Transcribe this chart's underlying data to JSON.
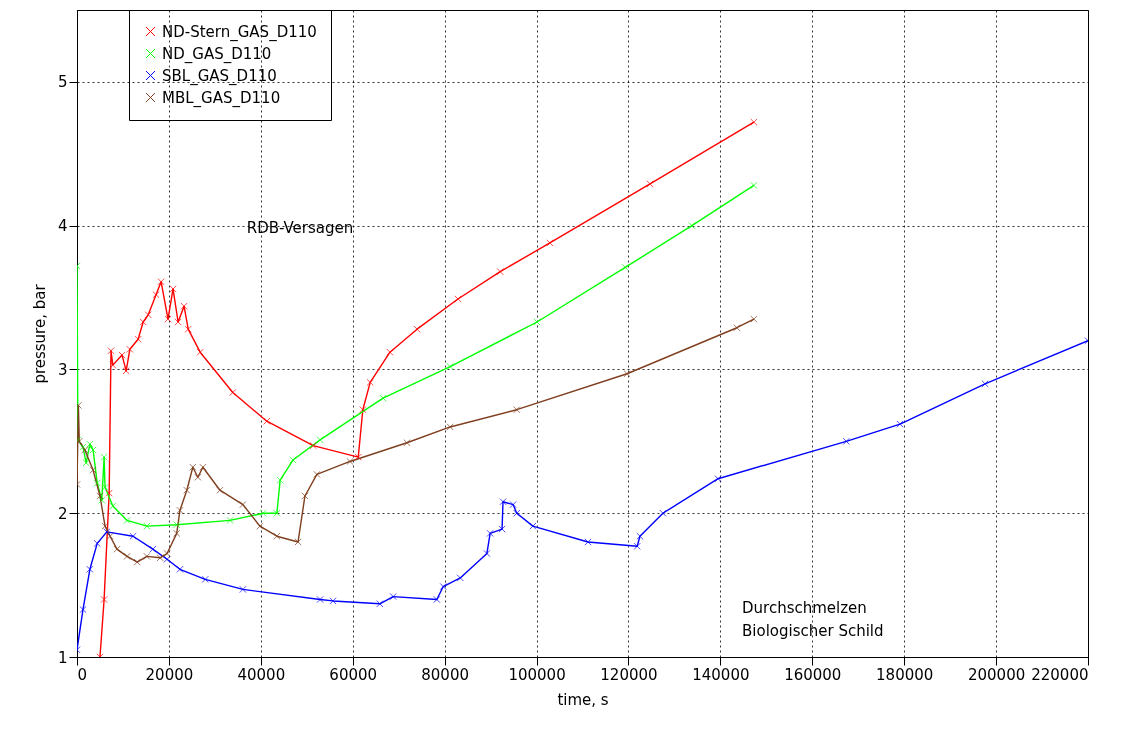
{
  "chart_data": {
    "type": "line",
    "xlabel": "time,  s",
    "ylabel": "pressure,  bar",
    "xlim": [
      0,
      220000
    ],
    "xticks": [
      0,
      20000,
      40000,
      60000,
      80000,
      100000,
      120000,
      140000,
      160000,
      180000,
      200000,
      220000
    ],
    "ylim": [
      1,
      5.5
    ],
    "yticks": [
      1,
      2,
      3,
      4,
      5
    ],
    "grid": true,
    "legend": "top left",
    "marker": "cross",
    "line_style": "solid",
    "annotations": [
      "RDB-Versagen",
      "Durchschmelzen\nBiologischer Schild"
    ],
    "series": [
      {
        "name": "ND-Stern_GAS_D110",
        "color": "#ff0000",
        "x": [
          5000,
          5900,
          7000,
          7400,
          7800,
          9800,
          10700,
          11500,
          13300,
          14400,
          15500,
          17200,
          18300,
          19800,
          20900,
          22000,
          23300,
          24200,
          26800,
          33900,
          41300,
          51400,
          61200,
          62200,
          63800,
          68100,
          74000,
          82900,
          92100,
          102900,
          124700,
          147300
        ],
        "values": [
          1.0,
          1.4,
          2.14,
          3.13,
          3.03,
          3.1,
          2.99,
          3.14,
          3.21,
          3.33,
          3.38,
          3.52,
          3.61,
          3.35,
          3.56,
          3.33,
          3.44,
          3.28,
          3.12,
          2.84,
          2.64,
          2.47,
          2.39,
          2.72,
          2.91,
          3.12,
          3.28,
          3.49,
          3.68,
          3.88,
          4.29,
          4.72
        ]
      },
      {
        "name": "ND_GAS_D110",
        "color": "#00ff00",
        "x": [
          0,
          200,
          1300,
          2000,
          2800,
          3500,
          4400,
          5400,
          5900,
          6100,
          7800,
          10900,
          15200,
          21700,
          33300,
          40500,
          43500,
          44200,
          47000,
          52900,
          66600,
          81200,
          100100,
          119300,
          133800,
          147300
        ],
        "values": [
          3.72,
          2.51,
          2.46,
          2.35,
          2.48,
          2.44,
          2.21,
          2.09,
          2.39,
          2.18,
          2.05,
          1.95,
          1.91,
          1.92,
          1.95,
          2.0,
          2.0,
          2.23,
          2.37,
          2.51,
          2.8,
          3.02,
          3.33,
          3.71,
          4.0,
          4.28
        ]
      },
      {
        "name": "SBL_GAS_D110",
        "color": "#0000ff",
        "x": [
          0,
          1300,
          2800,
          4400,
          6500,
          12200,
          16500,
          19600,
          22400,
          27900,
          36100,
          52900,
          55700,
          65900,
          68800,
          78300,
          79700,
          83400,
          89200,
          89900,
          92500,
          92700,
          94900,
          95700,
          99200,
          111200,
          121900,
          122500,
          127500,
          139500,
          167400,
          179100,
          197600,
          220000
        ],
        "values": [
          1.05,
          1.33,
          1.61,
          1.79,
          1.87,
          1.84,
          1.75,
          1.68,
          1.61,
          1.54,
          1.47,
          1.4,
          1.39,
          1.37,
          1.42,
          1.4,
          1.49,
          1.55,
          1.72,
          1.86,
          1.89,
          2.08,
          2.06,
          2.0,
          1.91,
          1.8,
          1.77,
          1.84,
          2.0,
          2.24,
          2.5,
          2.62,
          2.9,
          3.2
        ]
      },
      {
        "name": "MBL_GAS_D110",
        "color": "#7f3f1f",
        "x": [
          0,
          300,
          500,
          1700,
          3500,
          5000,
          6100,
          7200,
          8700,
          10900,
          13100,
          15200,
          18100,
          19600,
          21700,
          22400,
          23900,
          25200,
          26300,
          27400,
          31100,
          36100,
          39800,
          43500,
          48100,
          49600,
          52200,
          59400,
          71800,
          81200,
          95700,
          119700,
          143600,
          147300
        ],
        "values": [
          2.2,
          2.75,
          2.5,
          2.44,
          2.3,
          2.12,
          1.91,
          1.84,
          1.75,
          1.7,
          1.66,
          1.7,
          1.69,
          1.72,
          1.86,
          2.02,
          2.16,
          2.32,
          2.25,
          2.32,
          2.16,
          2.06,
          1.91,
          1.84,
          1.8,
          2.12,
          2.27,
          2.36,
          2.49,
          2.6,
          2.72,
          2.97,
          3.29,
          3.35
        ]
      }
    ]
  }
}
